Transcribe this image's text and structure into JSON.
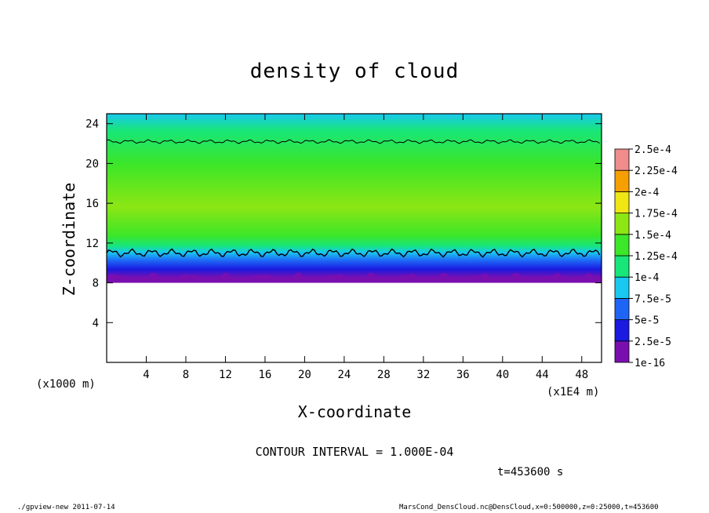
{
  "chart_data": {
    "type": "heatmap",
    "title": "density of cloud",
    "xlabel": "X-coordinate",
    "ylabel": "Z-coordinate",
    "x_unit": "(x1E4 m)",
    "y_unit": "(x1000 m)",
    "xlim": [
      0,
      50
    ],
    "ylim": [
      0,
      25
    ],
    "x_ticks": [
      "4",
      "8",
      "12",
      "16",
      "20",
      "24",
      "28",
      "32",
      "36",
      "40",
      "44",
      "48"
    ],
    "y_ticks": [
      "4",
      "8",
      "12",
      "16",
      "20",
      "24"
    ],
    "colorbar_levels": [
      "1e-16",
      "2.5e-5",
      "5e-5",
      "7.5e-5",
      "1e-4",
      "1.25e-4",
      "1.5e-4",
      "1.75e-4",
      "2e-4",
      "2.25e-4",
      "2.5e-4"
    ],
    "colorbar_colors": [
      "#7a0fb0",
      "#1a1ae0",
      "#1e64f5",
      "#18c8f0",
      "#18e678",
      "#3ce628",
      "#8ce614",
      "#f0e614",
      "#f5a000",
      "#f04614",
      "#f08c8c"
    ],
    "cloud_base_z": 8,
    "cloud_top_z": 22.3,
    "contour_levels_z": [
      11,
      22.2
    ],
    "grid": false
  },
  "annotations": {
    "contour_interval": "CONTOUR INTERVAL = 1.000E-04",
    "time": "t=453600 s",
    "footer_left": "./gpview-new  2011-07-14",
    "footer_right": "MarsCond_DensCloud.nc@DensCloud,x=0:500000,z=0:25000,t=453600"
  },
  "colors": {
    "frame": "#000000",
    "background": "#ffffff"
  }
}
